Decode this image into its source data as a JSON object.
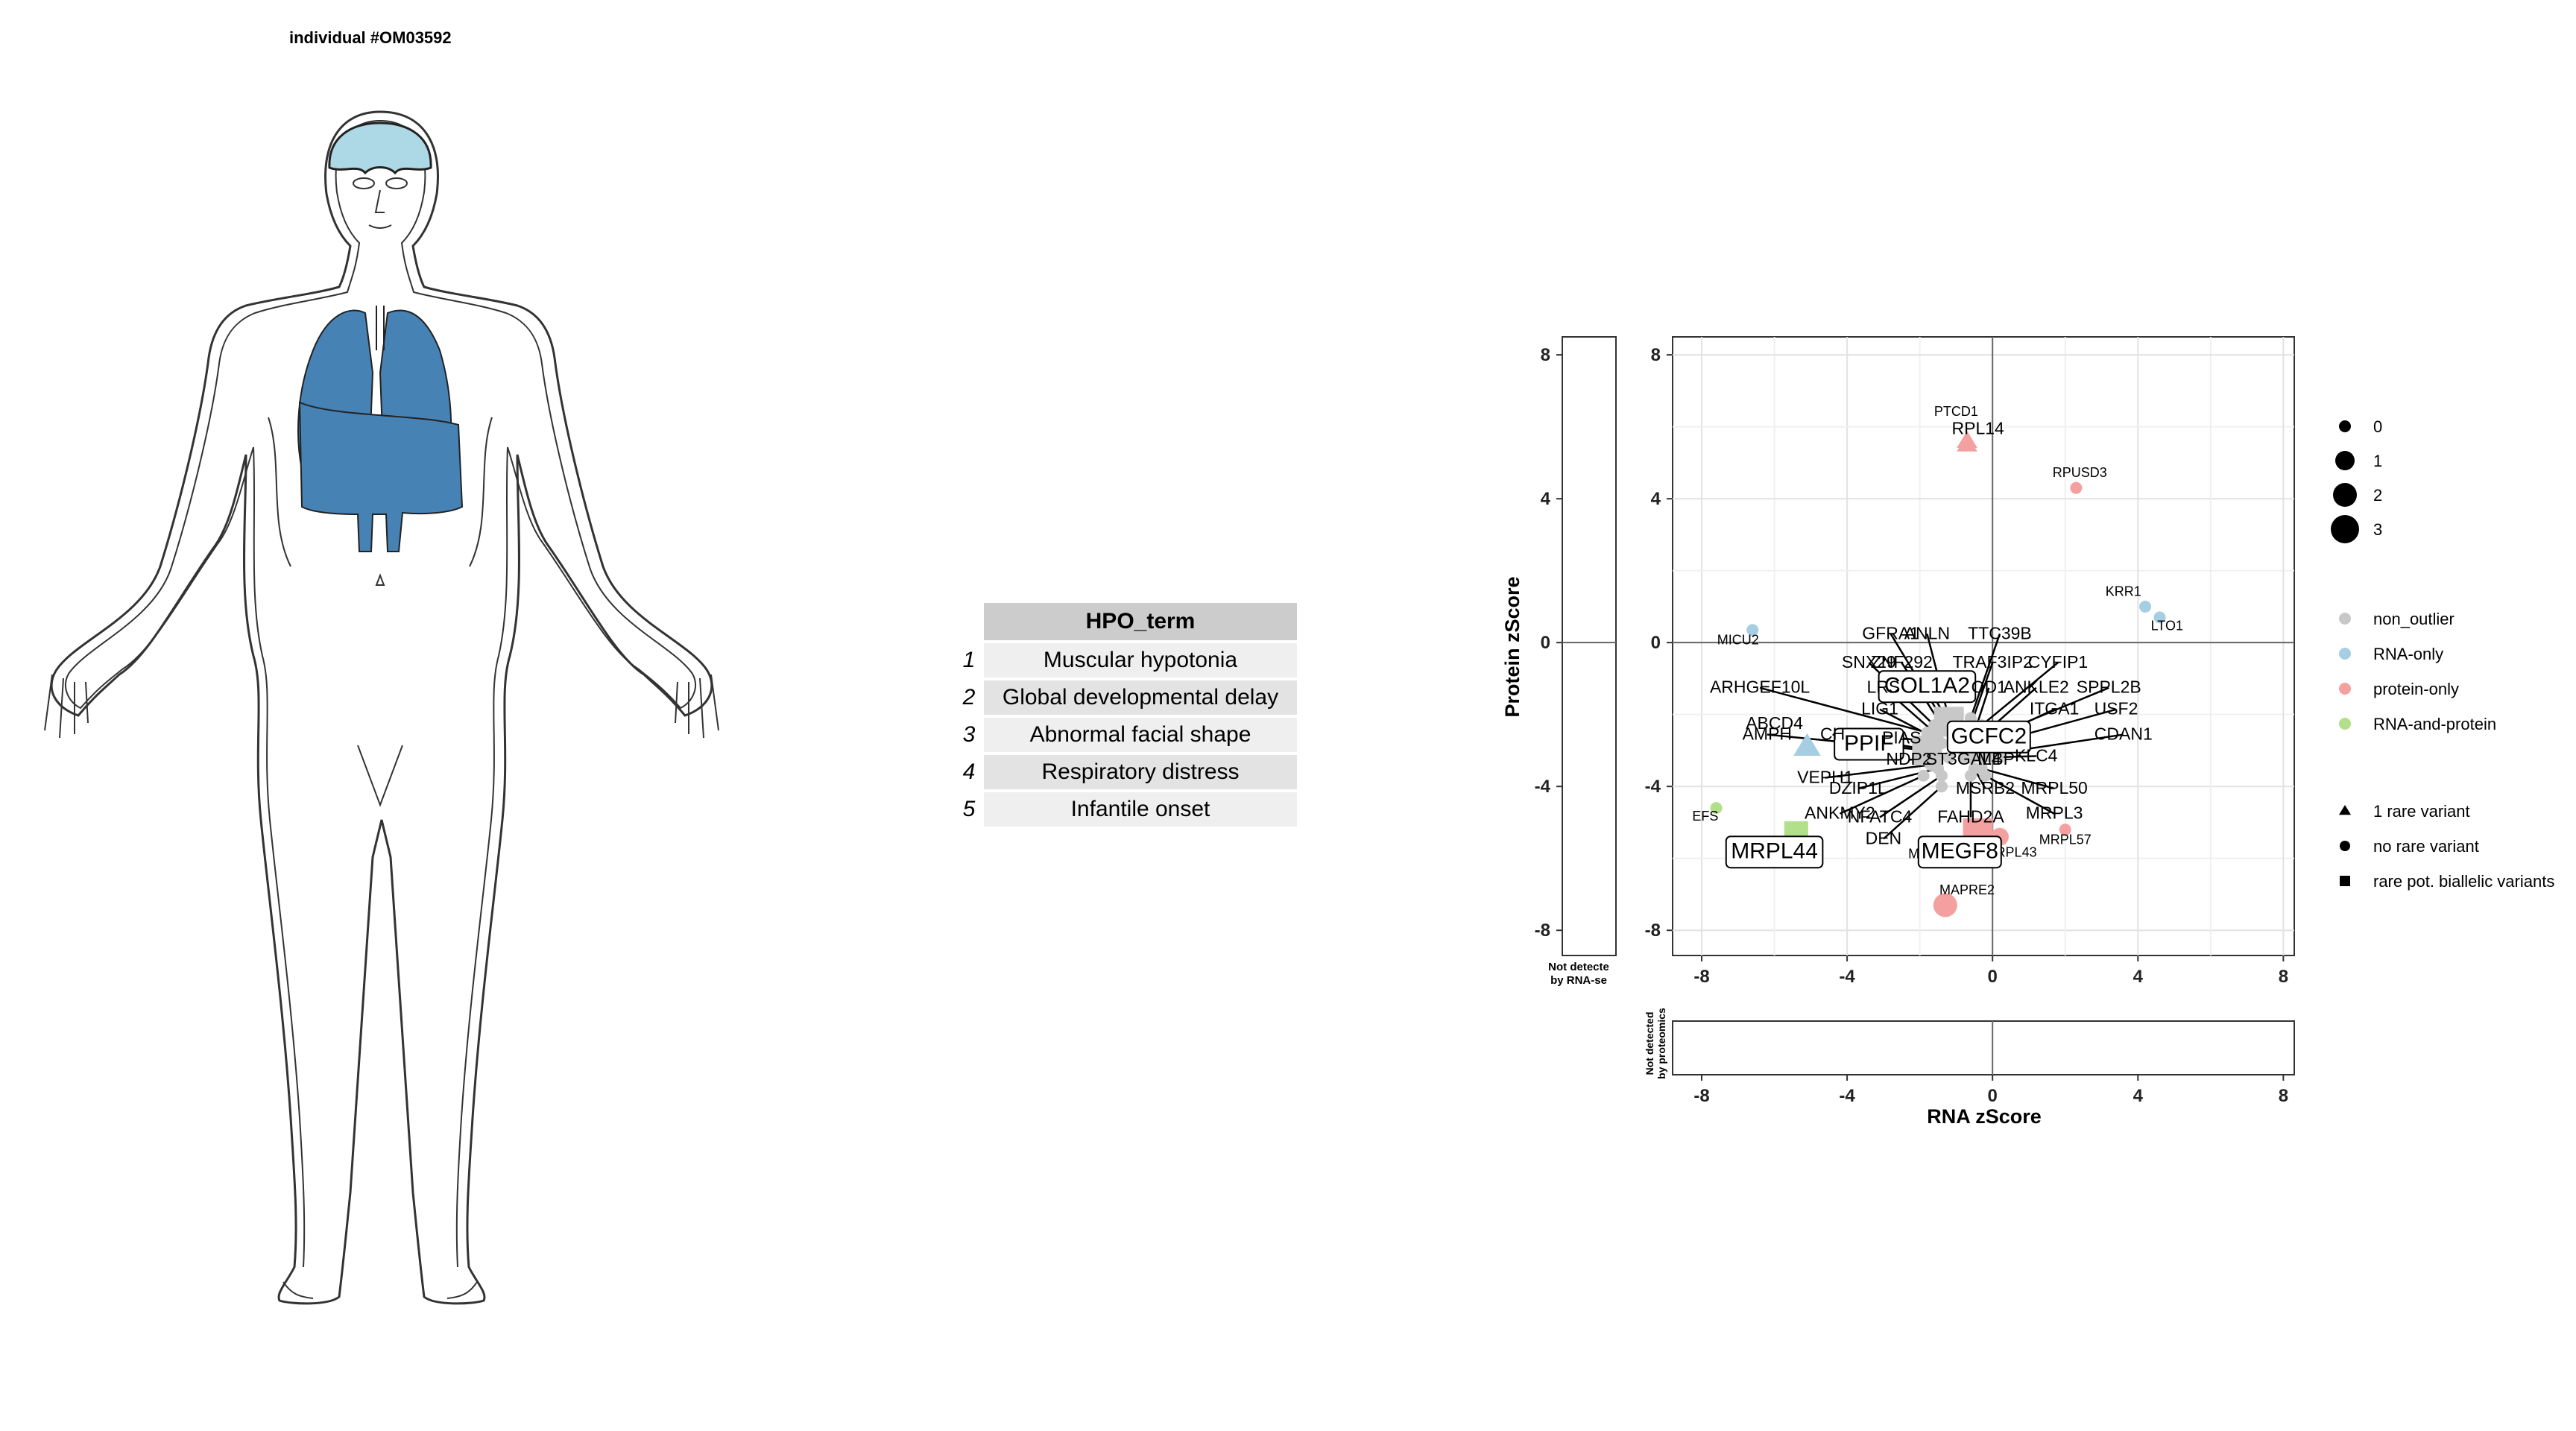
{
  "individual_title": "individual #OM03592",
  "hpo_table": {
    "header": "HPO_term",
    "rows": [
      {
        "n": "1",
        "term": "Muscular hypotonia"
      },
      {
        "n": "2",
        "term": "Global developmental delay"
      },
      {
        "n": "3",
        "term": "Abnormal facial shape"
      },
      {
        "n": "4",
        "term": "Respiratory distress"
      },
      {
        "n": "5",
        "term": "Infantile onset"
      }
    ]
  },
  "body_diagram": {
    "highlighted_organs": [
      "brain",
      "lungs",
      "diaphragm"
    ],
    "colors": {
      "brain": "#add8e6",
      "lungs": "#4682b4",
      "outline": "#333333"
    }
  },
  "chart_data": {
    "type": "scatter",
    "xlabel": "RNA zScore",
    "ylabel": "Protein zScore",
    "xlim": [
      -8.8,
      8.3
    ],
    "ylim": [
      -8.7,
      8.5
    ],
    "xticks": [
      -8,
      -4,
      0,
      4,
      8
    ],
    "yticks": [
      -8,
      -4,
      0,
      4,
      8
    ],
    "grid": true,
    "side_panels": {
      "left_label": "Not detected by RNA-seq",
      "bottom_label": "Not detected by proteomics"
    },
    "colors": {
      "non_outlier": "#c8c8c8",
      "RNA-only": "#a6cee3",
      "protein-only": "#f4a0a0",
      "RNA-and-protein": "#b2df8a"
    },
    "legend": {
      "size": {
        "title": "",
        "items": [
          "0",
          "1",
          "2",
          "3"
        ]
      },
      "color": {
        "items": [
          "non_outlier",
          "RNA-only",
          "protein-only",
          "RNA-and-protein"
        ]
      },
      "shape": {
        "items": [
          "1 rare variant",
          "no rare variant",
          "rare pot. biallelic variants"
        ]
      }
    },
    "points": [
      {
        "gene": "PTCD1",
        "x": -0.7,
        "y": 5.6,
        "cat": "protein-only",
        "shape": "triangle",
        "size": 1,
        "label_size": "small"
      },
      {
        "gene": "RPL14",
        "x": -0.7,
        "y": 5.5,
        "cat": "protein-only",
        "shape": "triangle",
        "size": 1,
        "label_size": "medium"
      },
      {
        "gene": "RPUSD3",
        "x": 2.3,
        "y": 4.3,
        "cat": "protein-only",
        "shape": "circle",
        "size": 0,
        "label_size": "small"
      },
      {
        "gene": "KRR1",
        "x": 4.2,
        "y": 1.0,
        "cat": "RNA-only",
        "shape": "circle",
        "size": 0,
        "label_size": "small"
      },
      {
        "gene": "LTO1",
        "x": 4.6,
        "y": 0.7,
        "cat": "RNA-only",
        "shape": "circle",
        "size": 0,
        "label_size": "small"
      },
      {
        "gene": "MICU2",
        "x": -6.6,
        "y": 0.35,
        "cat": "RNA-only",
        "shape": "circle",
        "size": 0,
        "label_size": "small"
      },
      {
        "gene": "EFS",
        "x": -7.6,
        "y": -4.6,
        "cat": "RNA-and-protein",
        "shape": "circle",
        "size": 0,
        "label_size": "small"
      },
      {
        "gene": "MRPL44",
        "x": -5.4,
        "y": -5.3,
        "cat": "RNA-and-protein",
        "shape": "square",
        "size": 2,
        "label_size": "boxed"
      },
      {
        "gene": "ABCD4",
        "x": -5.1,
        "y": -2.9,
        "cat": "RNA-only",
        "shape": "triangle",
        "size": 2,
        "label_size": "medium"
      },
      {
        "gene": "MAPRE2",
        "x": -1.3,
        "y": -7.3,
        "cat": "protein-only",
        "shape": "circle",
        "size": 2,
        "label_size": "small"
      },
      {
        "gene": "MRPL57",
        "x": 2.0,
        "y": -5.2,
        "cat": "protein-only",
        "shape": "circle",
        "size": 0,
        "label_size": "small"
      },
      {
        "gene": "MRPL43",
        "x": 0.2,
        "y": -5.4,
        "cat": "protein-only",
        "shape": "circle",
        "size": 1,
        "label_size": "small"
      },
      {
        "gene": "MRPL13",
        "x": -0.5,
        "y": -5.5,
        "cat": "protein-only",
        "shape": "circle",
        "size": 1,
        "label_size": "small"
      },
      {
        "gene": "MEGF8",
        "x": -0.4,
        "y": -5.3,
        "cat": "protein-only",
        "shape": "square",
        "size": 3,
        "label_size": "boxed"
      },
      {
        "gene": "COL1A2",
        "x": -1.2,
        "y": -2.2,
        "cat": "non_outlier",
        "shape": "square",
        "size": 3,
        "label_size": "boxed"
      },
      {
        "gene": "GCFC2",
        "x": -0.1,
        "y": -2.9,
        "cat": "non_outlier",
        "shape": "square",
        "size": 3,
        "label_size": "boxed"
      },
      {
        "gene": "PPIF",
        "x": -1.8,
        "y": -3.0,
        "cat": "non_outlier",
        "shape": "square",
        "size": 3,
        "label_size": "boxed"
      },
      {
        "gene": "GFRA1",
        "x": -1.4,
        "y": -2.1,
        "cat": "non_outlier",
        "shape": "circle",
        "size": 0,
        "label_size": "medium"
      },
      {
        "gene": "ANLN",
        "x": -1.2,
        "y": -2.1,
        "cat": "non_outlier",
        "shape": "circle",
        "size": 0,
        "label_size": "medium"
      },
      {
        "gene": "TTC39B",
        "x": -0.6,
        "y": -2.1,
        "cat": "non_outlier",
        "shape": "circle",
        "size": 0,
        "label_size": "medium"
      },
      {
        "gene": "SNX29",
        "x": -1.6,
        "y": -2.3,
        "cat": "non_outlier",
        "shape": "circle",
        "size": 0,
        "label_size": "medium"
      },
      {
        "gene": "ZNF292",
        "x": -1.4,
        "y": -2.3,
        "cat": "non_outlier",
        "shape": "circle",
        "size": 0,
        "label_size": "medium"
      },
      {
        "gene": "TRAF3IP2",
        "x": -0.6,
        "y": -2.3,
        "cat": "non_outlier",
        "shape": "circle",
        "size": 0,
        "label_size": "medium"
      },
      {
        "gene": "CYFIP1",
        "x": -0.3,
        "y": -2.3,
        "cat": "non_outlier",
        "shape": "circle",
        "size": 0,
        "label_size": "medium"
      },
      {
        "gene": "ARHGEF10L",
        "x": -1.8,
        "y": -2.5,
        "cat": "non_outlier",
        "shape": "circle",
        "size": 0,
        "label_size": "medium"
      },
      {
        "gene": "LRS",
        "x": -1.6,
        "y": -2.5,
        "cat": "non_outlier",
        "shape": "circle",
        "size": 0,
        "label_size": "medium"
      },
      {
        "gene": "OD1",
        "x": -0.5,
        "y": -2.5,
        "cat": "non_outlier",
        "shape": "circle",
        "size": 0,
        "label_size": "medium"
      },
      {
        "gene": "ANKLE2",
        "x": -0.3,
        "y": -2.6,
        "cat": "non_outlier",
        "shape": "circle",
        "size": 0,
        "label_size": "medium"
      },
      {
        "gene": "SPPL2B",
        "x": 0.0,
        "y": -2.6,
        "cat": "non_outlier",
        "shape": "circle",
        "size": 0,
        "label_size": "medium"
      },
      {
        "gene": "LIG1",
        "x": -1.5,
        "y": -2.7,
        "cat": "non_outlier",
        "shape": "circle",
        "size": 0,
        "label_size": "medium"
      },
      {
        "gene": "ITGA1",
        "x": -0.3,
        "y": -2.8,
        "cat": "non_outlier",
        "shape": "circle",
        "size": 0,
        "label_size": "medium"
      },
      {
        "gene": "USF2",
        "x": 0.0,
        "y": -2.8,
        "cat": "non_outlier",
        "shape": "circle",
        "size": 0,
        "label_size": "medium"
      },
      {
        "gene": "PIAS",
        "x": -1.4,
        "y": -2.8,
        "cat": "non_outlier",
        "shape": "circle",
        "size": 0,
        "label_size": "medium"
      },
      {
        "gene": "AMPH",
        "x": -1.8,
        "y": -3.0,
        "cat": "non_outlier",
        "shape": "circle",
        "size": 0,
        "label_size": "medium"
      },
      {
        "gene": "CH",
        "x": -1.6,
        "y": -3.0,
        "cat": "non_outlier",
        "shape": "circle",
        "size": 0,
        "label_size": "medium"
      },
      {
        "gene": "CDAN1",
        "x": 0.0,
        "y": -3.1,
        "cat": "non_outlier",
        "shape": "circle",
        "size": 0,
        "label_size": "medium"
      },
      {
        "gene": "KLC4",
        "x": -0.3,
        "y": -3.2,
        "cat": "non_outlier",
        "shape": "circle",
        "size": 0,
        "label_size": "medium"
      },
      {
        "gene": "NDP2",
        "x": -1.2,
        "y": -3.2,
        "cat": "non_outlier",
        "shape": "circle",
        "size": 0,
        "label_size": "medium"
      },
      {
        "gene": "ST3GAL4",
        "x": -0.8,
        "y": -3.2,
        "cat": "non_outlier",
        "shape": "circle",
        "size": 0,
        "label_size": "medium"
      },
      {
        "gene": "MBP",
        "x": -0.6,
        "y": -3.2,
        "cat": "non_outlier",
        "shape": "circle",
        "size": 0,
        "label_size": "medium"
      },
      {
        "gene": "VEPH1",
        "x": -1.7,
        "y": -3.4,
        "cat": "non_outlier",
        "shape": "circle",
        "size": 0,
        "label_size": "medium"
      },
      {
        "gene": "DZIP1L",
        "x": -1.5,
        "y": -3.5,
        "cat": "non_outlier",
        "shape": "circle",
        "size": 0,
        "label_size": "medium"
      },
      {
        "gene": "MSRB2",
        "x": -0.5,
        "y": -3.5,
        "cat": "non_outlier",
        "shape": "circle",
        "size": 0,
        "label_size": "medium"
      },
      {
        "gene": "MRPL50",
        "x": -0.3,
        "y": -3.5,
        "cat": "non_outlier",
        "shape": "circle",
        "size": 0,
        "label_size": "medium"
      },
      {
        "gene": "MRPL3",
        "x": -0.2,
        "y": -3.7,
        "cat": "non_outlier",
        "shape": "circle",
        "size": 0,
        "label_size": "medium"
      },
      {
        "gene": "ANKMY2",
        "x": -1.9,
        "y": -3.7,
        "cat": "non_outlier",
        "shape": "circle",
        "size": 0,
        "label_size": "medium"
      },
      {
        "gene": "NFATC4",
        "x": -1.4,
        "y": -3.7,
        "cat": "non_outlier",
        "shape": "circle",
        "size": 0,
        "label_size": "medium"
      },
      {
        "gene": "FAHD2A",
        "x": -0.6,
        "y": -3.7,
        "cat": "non_outlier",
        "shape": "circle",
        "size": 0,
        "label_size": "medium"
      },
      {
        "gene": "DEN",
        "x": -1.4,
        "y": -4.0,
        "cat": "non_outlier",
        "shape": "circle",
        "size": 0,
        "label_size": "medium"
      }
    ],
    "label_positions": {
      "PTCD1": [
        -1.0,
        6.3
      ],
      "RPL14": [
        -0.4,
        5.8
      ],
      "RPUSD3": [
        2.4,
        4.6
      ],
      "KRR1": [
        3.6,
        1.3
      ],
      "LTO1": [
        4.8,
        0.35
      ],
      "MICU2": [
        -7.0,
        -0.05
      ],
      "EFS": [
        -7.9,
        -4.95
      ],
      "MRPL44": [
        -6.0,
        -6.0
      ],
      "ABCD4": [
        -6.0,
        -2.4
      ],
      "MAPRE2": [
        -0.7,
        -7.0
      ],
      "MRPL57": [
        2.0,
        -5.6
      ],
      "MRPL43": [
        0.5,
        -5.95
      ],
      "MRPL13": [
        -1.6,
        -6.0
      ],
      "MEGF8": [
        -0.9,
        -6.0
      ],
      "COL1A2": [
        -1.8,
        -1.4
      ],
      "GCFC2": [
        -0.1,
        -2.8
      ],
      "PPIF": [
        -3.4,
        -3.0
      ],
      "GFRA1": [
        -2.8,
        0.1
      ],
      "ANLN": [
        -1.8,
        0.1
      ],
      "TTC39B": [
        0.2,
        0.1
      ],
      "SNX29": [
        -3.4,
        -0.7
      ],
      "ZNF292": [
        -2.5,
        -0.7
      ],
      "TRAF3IP2": [
        0.0,
        -0.7
      ],
      "CYFIP1": [
        1.8,
        -0.7
      ],
      "ARHGEF10L": [
        -6.4,
        -1.4
      ],
      "LRS": [
        -3.0,
        -1.4
      ],
      "OD1": [
        -0.1,
        -1.4
      ],
      "ANKLE2": [
        1.2,
        -1.4
      ],
      "SPPL2B": [
        3.2,
        -1.4
      ],
      "LIG1": [
        -3.1,
        -2.0
      ],
      "ITGA1": [
        1.7,
        -2.0
      ],
      "USF2": [
        3.4,
        -2.0
      ],
      "PIAS": [
        -2.5,
        -2.8
      ],
      "AMPH": [
        -6.2,
        -2.7
      ],
      "CH": [
        -4.4,
        -2.7
      ],
      "CDAN1": [
        3.6,
        -2.7
      ],
      "KLC4": [
        1.2,
        -3.3
      ],
      "NDP2": [
        -2.3,
        -3.4
      ],
      "ST3GAL4": [
        -0.8,
        -3.4
      ],
      "MBP": [
        0.1,
        -3.4
      ],
      "VEPH1": [
        -4.6,
        -3.9
      ],
      "DZIP1L": [
        -3.7,
        -4.2
      ],
      "MSRB2": [
        -0.2,
        -4.2
      ],
      "MRPL50": [
        1.7,
        -4.2
      ],
      "MRPL3": [
        1.7,
        -4.9
      ],
      "ANKMY2": [
        -4.2,
        -4.9
      ],
      "NFATC4": [
        -3.1,
        -5.0
      ],
      "FAHD2A": [
        -0.6,
        -5.0
      ],
      "DEN": [
        -3.0,
        -5.6
      ]
    }
  }
}
